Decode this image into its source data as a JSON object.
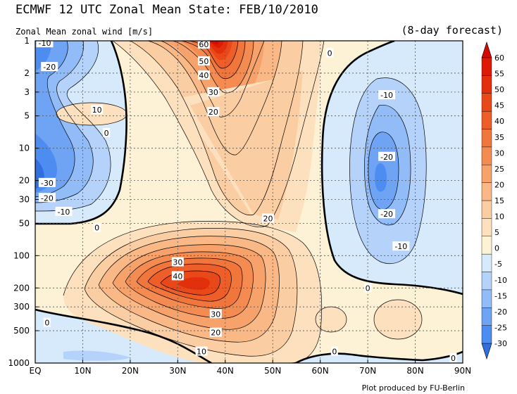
{
  "title": "ECMWF 12 UTC Zonal Mean State: FEB/10/2010",
  "forecast": "(8-day forecast)",
  "credit": "Plot produced by FU-Berlin",
  "chart_data": {
    "type": "contour",
    "title": "ECMWF 12 UTC Zonal Mean State: FEB/10/2010",
    "subtitle": "Zonal Mean zonal wind [m/s]",
    "x_ticks": [
      "EQ",
      "10N",
      "20N",
      "30N",
      "40N",
      "50N",
      "60N",
      "70N",
      "80N",
      "90N"
    ],
    "y_ticks": [
      "1",
      "2",
      "3",
      "5",
      "10",
      "20",
      "30",
      "50",
      "100",
      "200",
      "300",
      "500",
      "1000"
    ],
    "xlim": [
      0,
      90
    ],
    "ylim": [
      1000,
      1
    ],
    "y_scale": "log",
    "grid": true,
    "colorbar": {
      "levels": [
        -30,
        -25,
        -20,
        -15,
        -10,
        -5,
        0,
        5,
        10,
        15,
        20,
        25,
        30,
        35,
        40,
        45,
        50,
        55,
        60
      ],
      "labels": [
        "60",
        "55",
        "50",
        "45",
        "40",
        "35",
        "30",
        "25",
        "20",
        "15",
        "10",
        "5",
        "0",
        "-5",
        "-10",
        "-15",
        "-20",
        "-25",
        "-30"
      ],
      "colors": [
        "#2f6fe0",
        "#4d8cf0",
        "#6fa4f4",
        "#92bcf7",
        "#b5d3fa",
        "#d6eafc",
        "#fdf2d6",
        "#fde0be",
        "#fbcda2",
        "#f9b886",
        "#f7a26a",
        "#f48c52",
        "#f1763c",
        "#ee5e28",
        "#e94818",
        "#e3300c",
        "#dc1a06",
        "#d40a03"
      ]
    },
    "contour_labels": [
      {
        "text": "60",
        "lat": 35.5,
        "p": 1.08
      },
      {
        "text": "50",
        "lat": 35.5,
        "p": 1.55
      },
      {
        "text": "40",
        "lat": 35.5,
        "p": 2.1
      },
      {
        "text": "30",
        "lat": 37.5,
        "p": 3.0
      },
      {
        "text": "20",
        "lat": 37.5,
        "p": 4.6
      },
      {
        "text": "20",
        "lat": 49,
        "p": 45
      },
      {
        "text": "30",
        "lat": 30,
        "p": 115
      },
      {
        "text": "40",
        "lat": 30,
        "p": 155
      },
      {
        "text": "30",
        "lat": 38,
        "p": 350
      },
      {
        "text": "20",
        "lat": 38,
        "p": 520
      },
      {
        "text": "10",
        "lat": 35,
        "p": 780
      },
      {
        "text": "0",
        "lat": 62,
        "p": 1.3
      },
      {
        "text": "0",
        "lat": 15,
        "p": 7.2
      },
      {
        "text": "0",
        "lat": 13,
        "p": 55
      },
      {
        "text": "0",
        "lat": 70,
        "p": 200
      },
      {
        "text": "0",
        "lat": 2.5,
        "p": 420
      },
      {
        "text": "0",
        "lat": 63,
        "p": 780
      },
      {
        "text": "0",
        "lat": 88,
        "p": 900
      },
      {
        "text": "10",
        "lat": 13,
        "p": 4.4
      },
      {
        "text": "-10",
        "lat": 2,
        "p": 1.05
      },
      {
        "text": "-20",
        "lat": 3,
        "p": 1.75
      },
      {
        "text": "-30",
        "lat": 2.5,
        "p": 21
      },
      {
        "text": "-20",
        "lat": 2.5,
        "p": 29
      },
      {
        "text": "-10",
        "lat": 6,
        "p": 39
      },
      {
        "text": "-10",
        "lat": 74,
        "p": 3.2
      },
      {
        "text": "-20",
        "lat": 74,
        "p": 12
      },
      {
        "text": "-20",
        "lat": 74,
        "p": 41
      },
      {
        "text": "-10",
        "lat": 77,
        "p": 82
      }
    ]
  }
}
